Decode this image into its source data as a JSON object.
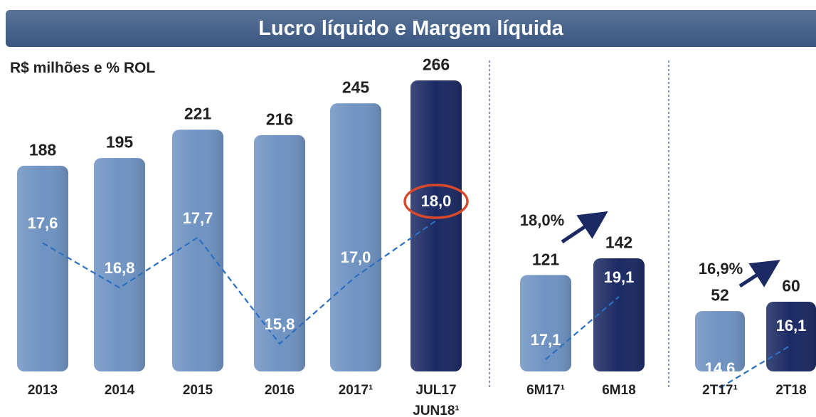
{
  "title": "Lucro líquido e Margem líquida",
  "subtitle": "R$ milhões e % ROL",
  "chart_data": [
    {
      "type": "bar",
      "categories": [
        "2013",
        "2014",
        "2015",
        "2016",
        "2017¹",
        "JUL17 JUN18¹"
      ],
      "values": [
        188,
        195,
        221,
        216,
        245,
        266
      ],
      "colors": [
        "#6f93c2",
        "#6f93c2",
        "#6f93c2",
        "#6f93c2",
        "#6f93c2",
        "#1b2a63"
      ],
      "margin": {
        "values": [
          17.6,
          16.8,
          17.7,
          15.8,
          17.0,
          18.0
        ],
        "value_labels": [
          "17,6",
          "16,8",
          "17,7",
          "15,8",
          "17,0",
          "18,0"
        ],
        "color": "#2b6fc2"
      }
    },
    {
      "type": "bar",
      "categories": [
        "6M17¹",
        "6M18"
      ],
      "values": [
        121,
        142
      ],
      "colors": [
        "#6f93c2",
        "#1b2a63"
      ],
      "margin": {
        "values": [
          17.1,
          19.1
        ],
        "value_labels": [
          "17,1",
          "19,1"
        ],
        "color": "#2b6fc2"
      },
      "annotation": "18,0%"
    },
    {
      "type": "bar",
      "categories": [
        "2T17¹",
        "2T18"
      ],
      "values": [
        52,
        60
      ],
      "colors": [
        "#6f93c2",
        "#1b2a63"
      ],
      "margin": {
        "values": [
          14.6,
          16.1
        ],
        "value_labels": [
          "14,6",
          "16,1"
        ],
        "color": "#2b6fc2"
      },
      "annotation": "16,9%"
    }
  ]
}
